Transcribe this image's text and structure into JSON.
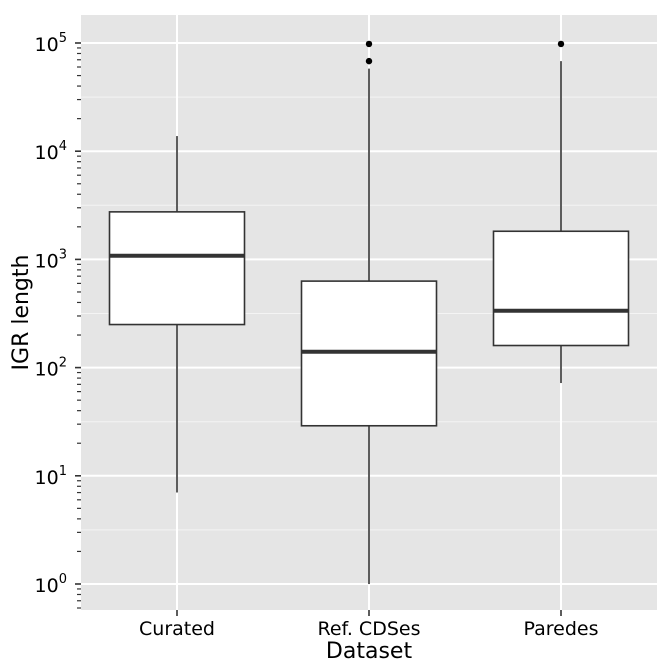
{
  "chart_data": {
    "type": "box",
    "xlabel": "Dataset",
    "ylabel": "IGR length",
    "y_scale": "log10",
    "ylim": [
      0.55,
      160000
    ],
    "y_ticks": [
      {
        "base": "10",
        "exp": "0",
        "value": 1
      },
      {
        "base": "10",
        "exp": "1",
        "value": 10
      },
      {
        "base": "10",
        "exp": "2",
        "value": 100
      },
      {
        "base": "10",
        "exp": "3",
        "value": 1000
      },
      {
        "base": "10",
        "exp": "4",
        "value": 10000
      },
      {
        "base": "10",
        "exp": "5",
        "value": 100000
      }
    ],
    "categories": [
      "Curated",
      "Ref. CDSes",
      "Paredes"
    ],
    "boxes": [
      {
        "category": "Curated",
        "whisker_low": 7,
        "q1": 250,
        "median": 1080,
        "q3": 2750,
        "whisker_high": 13800,
        "outliers": []
      },
      {
        "category": "Ref. CDSes",
        "whisker_low": 1,
        "q1": 29,
        "median": 140,
        "q3": 630,
        "whisker_high": 58000,
        "outliers": [
          68000,
          98000
        ]
      },
      {
        "category": "Paredes",
        "whisker_low": 72,
        "q1": 160,
        "median": 335,
        "q3": 1820,
        "whisker_high": 68000,
        "outliers": [
          98000
        ]
      }
    ],
    "grid": true,
    "background": "#e5e5e5",
    "grid_color": "#ffffff",
    "box_fill": "#ffffff",
    "box_stroke": "#333333"
  }
}
